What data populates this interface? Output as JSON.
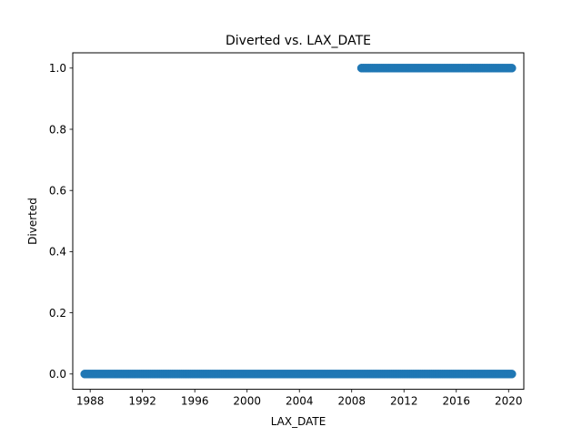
{
  "chart_data": {
    "type": "scatter",
    "title": "Diverted vs. LAX_DATE",
    "xlabel": "LAX_DATE",
    "ylabel": "Diverted",
    "xlim": [
      "1986-09-01",
      "2021-03-01"
    ],
    "ylim": [
      -0.05,
      1.05
    ],
    "x_ticks": [
      "1988",
      "1992",
      "1996",
      "2000",
      "2004",
      "2008",
      "2012",
      "2016",
      "2020"
    ],
    "y_ticks": [
      "0.0",
      "0.2",
      "0.4",
      "0.6",
      "0.8",
      "1.0"
    ],
    "grid": false,
    "marker_color": "#1f77b4",
    "series": [
      {
        "label": "Diverted = 0",
        "y": 0,
        "x_range": [
          "1987-08-01",
          "2020-04-01"
        ]
      },
      {
        "label": "Diverted = 1",
        "y": 1,
        "x_range": [
          "2008-10-01",
          "2020-04-01"
        ]
      }
    ]
  }
}
